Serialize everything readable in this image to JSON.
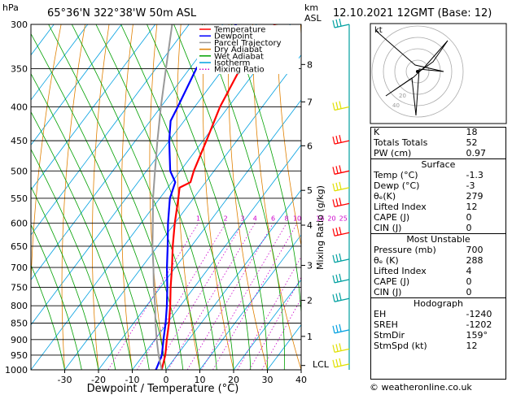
{
  "header": {
    "hpa_label": "hPa",
    "location": "65°36'N  322°38'W  50m  ASL",
    "km_label": "km",
    "asl_label": "ASL",
    "datetime": "12.10.2021  12GMT  (Base: 12)"
  },
  "chart_data": {
    "type": "line",
    "title": "65°36'N  322°38'W  50m  ASL",
    "xlabel": "Dewpoint / Temperature (°C)",
    "ylabel": "hPa",
    "y2label": "Mixing Ratio (g/kg)",
    "xlim": [
      -40,
      40
    ],
    "ylim": [
      1000,
      300
    ],
    "xticks": [
      -30,
      -20,
      -10,
      0,
      10,
      20,
      30,
      40
    ],
    "pressure_levels": [
      300,
      350,
      400,
      450,
      500,
      550,
      600,
      650,
      700,
      750,
      800,
      850,
      900,
      950,
      1000
    ],
    "km_ticks": [
      {
        "label": "8",
        "p": 345
      },
      {
        "label": "7",
        "p": 393
      },
      {
        "label": "6",
        "p": 458
      },
      {
        "label": "5",
        "p": 535
      },
      {
        "label": "4",
        "p": 604
      },
      {
        "label": "3",
        "p": 695
      },
      {
        "label": "2",
        "p": 785
      },
      {
        "label": "1",
        "p": 890
      }
    ],
    "lcl_label": "LCL",
    "lcl_p": 985,
    "mixing_ratio_labels": [
      "1",
      "2",
      "3",
      "4",
      "6",
      "8",
      "10",
      "16",
      "20",
      "25"
    ],
    "mixing_ratio_values": [
      1,
      2,
      3,
      4,
      6,
      8,
      10,
      16,
      20,
      25
    ],
    "legend": [
      {
        "name": "Temperature",
        "color": "#ff0000",
        "style": "solid"
      },
      {
        "name": "Dewpoint",
        "color": "#0000ff",
        "style": "solid"
      },
      {
        "name": "Parcel Trajectory",
        "color": "#999999",
        "style": "solid"
      },
      {
        "name": "Dry Adiabat",
        "color": "#e08000",
        "style": "solid"
      },
      {
        "name": "Wet Adiabat",
        "color": "#00a000",
        "style": "solid"
      },
      {
        "name": "Isotherm",
        "color": "#00a0e0",
        "style": "solid"
      },
      {
        "name": "Mixing Ratio",
        "color": "#cc00cc",
        "style": "dotted"
      }
    ],
    "series": [
      {
        "name": "Temperature",
        "color": "#ff0000",
        "points": [
          [
            1000,
            -1.3
          ],
          [
            950,
            -3.5
          ],
          [
            900,
            -6.5
          ],
          [
            850,
            -9.5
          ],
          [
            800,
            -13
          ],
          [
            750,
            -17
          ],
          [
            700,
            -21
          ],
          [
            650,
            -25.5
          ],
          [
            600,
            -30
          ],
          [
            550,
            -34.5
          ],
          [
            530,
            -36.5
          ],
          [
            520,
            -34.5
          ],
          [
            500,
            -36
          ],
          [
            450,
            -39
          ],
          [
            400,
            -42.5
          ],
          [
            350,
            -45
          ],
          [
            320,
            -46
          ],
          [
            300,
            -44.5
          ]
        ]
      },
      {
        "name": "Dewpoint",
        "color": "#0000ff",
        "points": [
          [
            1000,
            -3
          ],
          [
            950,
            -4.5
          ],
          [
            900,
            -7.5
          ],
          [
            850,
            -10.5
          ],
          [
            800,
            -14
          ],
          [
            750,
            -18
          ],
          [
            700,
            -22.5
          ],
          [
            650,
            -27
          ],
          [
            600,
            -32
          ],
          [
            550,
            -37
          ],
          [
            520,
            -39
          ],
          [
            500,
            -43
          ],
          [
            450,
            -50
          ],
          [
            420,
            -54
          ],
          [
            400,
            -55
          ],
          [
            350,
            -58
          ],
          [
            320,
            -58
          ],
          [
            300,
            -56
          ]
        ]
      },
      {
        "name": "Parcel Trajectory",
        "color": "#999999",
        "points": [
          [
            1000,
            -1.3
          ],
          [
            985,
            -2.5
          ],
          [
            950,
            -5.5
          ],
          [
            900,
            -9.5
          ],
          [
            850,
            -13.5
          ],
          [
            800,
            -17.5
          ],
          [
            750,
            -22
          ],
          [
            700,
            -26.5
          ],
          [
            650,
            -31.5
          ],
          [
            600,
            -36.5
          ],
          [
            550,
            -42
          ],
          [
            500,
            -47.5
          ],
          [
            450,
            -53.5
          ],
          [
            400,
            -60
          ],
          [
            350,
            -67
          ],
          [
            300,
            -75
          ]
        ]
      }
    ],
    "wind_barbs": [
      {
        "p": 300,
        "color": "#00a0a0"
      },
      {
        "p": 400,
        "color": "#e0e000"
      },
      {
        "p": 450,
        "color": "#ff0000"
      },
      {
        "p": 500,
        "color": "#ff0000"
      },
      {
        "p": 530,
        "color": "#e0e000"
      },
      {
        "p": 560,
        "color": "#ff0000"
      },
      {
        "p": 620,
        "color": "#ff0000"
      },
      {
        "p": 680,
        "color": "#00a0a0"
      },
      {
        "p": 730,
        "color": "#00a0a0"
      },
      {
        "p": 780,
        "color": "#00a0a0"
      },
      {
        "p": 870,
        "color": "#00a0e0"
      },
      {
        "p": 930,
        "color": "#e0e000"
      },
      {
        "p": 980,
        "color": "#e0e000"
      }
    ]
  },
  "hodograph": {
    "unit_label": "kt",
    "ring_labels": [
      "20",
      "40"
    ]
  },
  "indices": {
    "k": {
      "label": "K",
      "value": "18"
    },
    "totals_totals": {
      "label": "Totals Totals",
      "value": "52"
    },
    "pw": {
      "label": "PW (cm)",
      "value": "0.97"
    }
  },
  "surface": {
    "title": "Surface",
    "rows": [
      {
        "label": "Temp (°C)",
        "value": "-1.3"
      },
      {
        "label": "Dewp (°C)",
        "value": "-3"
      },
      {
        "label": "θₑ(K)",
        "value": "279"
      },
      {
        "label": "Lifted Index",
        "value": "12"
      },
      {
        "label": "CAPE (J)",
        "value": "0"
      },
      {
        "label": "CIN (J)",
        "value": "0"
      }
    ]
  },
  "most_unstable": {
    "title": "Most Unstable",
    "rows": [
      {
        "label": "Pressure (mb)",
        "value": "700"
      },
      {
        "label": "θₑ (K)",
        "value": "288"
      },
      {
        "label": "Lifted Index",
        "value": "4"
      },
      {
        "label": "CAPE (J)",
        "value": "0"
      },
      {
        "label": "CIN (J)",
        "value": "0"
      }
    ]
  },
  "hodograph_stats": {
    "title": "Hodograph",
    "rows": [
      {
        "label": "EH",
        "value": "-1240"
      },
      {
        "label": "SREH",
        "value": "-1202"
      },
      {
        "label": "StmDir",
        "value": "159°"
      },
      {
        "label": "StmSpd (kt)",
        "value": "12"
      }
    ]
  },
  "copyright": "© weatheronline.co.uk"
}
